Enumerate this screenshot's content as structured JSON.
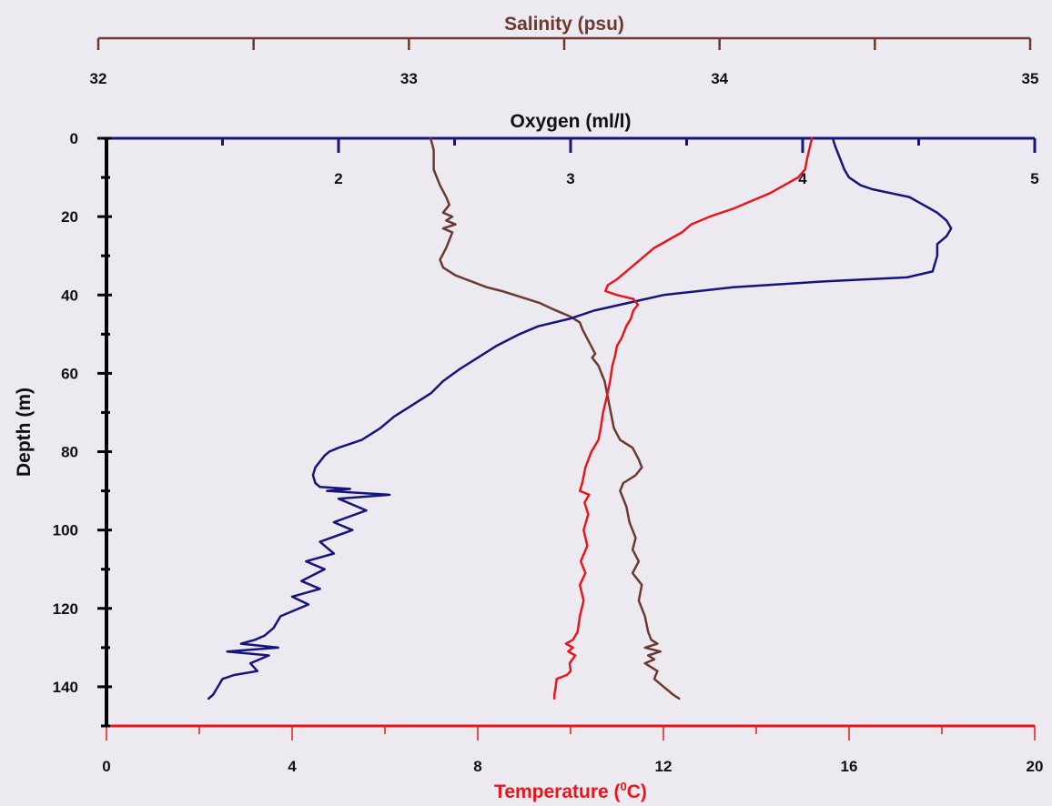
{
  "chart_data": {
    "type": "line",
    "depth_axis": {
      "label": "Depth (m)",
      "range": [
        0,
        150
      ],
      "reversed": true,
      "ticks": [
        "0",
        "20",
        "40",
        "60",
        "80",
        "100",
        "120",
        "140"
      ],
      "tick_values": [
        0,
        20,
        40,
        60,
        80,
        100,
        120,
        140
      ]
    },
    "salinity_axis": {
      "label": "Salinity (psu)",
      "range": [
        32,
        35
      ],
      "ticks": [
        "32",
        "33",
        "34",
        "35"
      ],
      "tick_values": [
        32,
        33,
        34,
        35
      ],
      "color": "#6b3a2e"
    },
    "oxygen_axis": {
      "label": "Oxygen (ml/l)",
      "range": [
        1,
        5
      ],
      "ticks": [
        "2",
        "3",
        "4",
        "5"
      ],
      "tick_values": [
        2,
        3,
        4,
        5
      ],
      "color": "#15157a"
    },
    "temperature_axis": {
      "label_prefix": "Temperature (",
      "label_sup": "0",
      "label_suffix": "C)",
      "range": [
        0,
        20
      ],
      "ticks": [
        "0",
        "4",
        "8",
        "12",
        "16",
        "20"
      ],
      "tick_values": [
        0,
        4,
        8,
        12,
        16,
        20
      ],
      "color": "#e8161b"
    },
    "series": [
      {
        "axis": "salinity",
        "color": "#6b3a2e",
        "points": [
          [
            33.07,
            0
          ],
          [
            33.08,
            3
          ],
          [
            33.08,
            8
          ],
          [
            33.1,
            12
          ],
          [
            33.12,
            15
          ],
          [
            33.13,
            17
          ],
          [
            33.11,
            19
          ],
          [
            33.14,
            20
          ],
          [
            33.12,
            21
          ],
          [
            33.15,
            22
          ],
          [
            33.11,
            23
          ],
          [
            33.14,
            24
          ],
          [
            33.13,
            26
          ],
          [
            33.12,
            28
          ],
          [
            33.1,
            31
          ],
          [
            33.11,
            33
          ],
          [
            33.15,
            35
          ],
          [
            33.2,
            36.5
          ],
          [
            33.25,
            38
          ],
          [
            33.3,
            39
          ],
          [
            33.36,
            40.5
          ],
          [
            33.42,
            42
          ],
          [
            33.46,
            43.5
          ],
          [
            33.52,
            45.5
          ],
          [
            33.55,
            47
          ],
          [
            33.56,
            49
          ],
          [
            33.58,
            52
          ],
          [
            33.6,
            55
          ],
          [
            33.59,
            56
          ],
          [
            33.61,
            58
          ],
          [
            33.63,
            62
          ],
          [
            33.64,
            66
          ],
          [
            33.65,
            70
          ],
          [
            33.66,
            74
          ],
          [
            33.68,
            77
          ],
          [
            33.72,
            79
          ],
          [
            33.74,
            82
          ],
          [
            33.75,
            84
          ],
          [
            33.73,
            86
          ],
          [
            33.69,
            88
          ],
          [
            33.68,
            90
          ],
          [
            33.7,
            94
          ],
          [
            33.71,
            98
          ],
          [
            33.73,
            102
          ],
          [
            33.72,
            105
          ],
          [
            33.74,
            108
          ],
          [
            33.72,
            111
          ],
          [
            33.75,
            114
          ],
          [
            33.74,
            118
          ],
          [
            33.76,
            122
          ],
          [
            33.77,
            126
          ],
          [
            33.78,
            128
          ],
          [
            33.8,
            129
          ],
          [
            33.76,
            130
          ],
          [
            33.81,
            131
          ],
          [
            33.77,
            132
          ],
          [
            33.79,
            133
          ],
          [
            33.76,
            134
          ],
          [
            33.8,
            136
          ],
          [
            33.79,
            138
          ],
          [
            33.82,
            140
          ],
          [
            33.85,
            142
          ],
          [
            33.87,
            143
          ]
        ]
      },
      {
        "axis": "oxygen",
        "color": "#15157a",
        "points": [
          [
            4.13,
            0
          ],
          [
            4.14,
            2
          ],
          [
            4.16,
            5
          ],
          [
            4.18,
            8
          ],
          [
            4.2,
            10
          ],
          [
            4.25,
            12
          ],
          [
            4.3,
            13
          ],
          [
            4.38,
            14
          ],
          [
            4.46,
            15
          ],
          [
            4.52,
            17
          ],
          [
            4.58,
            19
          ],
          [
            4.62,
            21
          ],
          [
            4.64,
            23
          ],
          [
            4.62,
            25
          ],
          [
            4.58,
            27
          ],
          [
            4.58,
            30
          ],
          [
            4.57,
            32
          ],
          [
            4.56,
            34
          ],
          [
            4.45,
            35.5
          ],
          [
            4.1,
            36.5
          ],
          [
            3.7,
            38
          ],
          [
            3.4,
            40
          ],
          [
            3.25,
            42
          ],
          [
            3.1,
            44
          ],
          [
            3.0,
            46
          ],
          [
            2.86,
            48
          ],
          [
            2.78,
            50
          ],
          [
            2.68,
            53
          ],
          [
            2.6,
            56
          ],
          [
            2.52,
            59
          ],
          [
            2.45,
            62
          ],
          [
            2.4,
            65
          ],
          [
            2.32,
            68
          ],
          [
            2.24,
            71
          ],
          [
            2.18,
            74
          ],
          [
            2.1,
            77
          ],
          [
            2.0,
            79
          ],
          [
            1.96,
            80
          ],
          [
            1.94,
            81
          ],
          [
            1.92,
            82.5
          ],
          [
            1.9,
            84
          ],
          [
            1.89,
            86
          ],
          [
            1.9,
            88
          ],
          [
            1.92,
            89
          ],
          [
            2.05,
            89.5
          ],
          [
            1.95,
            90
          ],
          [
            2.22,
            91
          ],
          [
            2.0,
            92
          ],
          [
            2.12,
            95
          ],
          [
            1.98,
            98
          ],
          [
            2.06,
            100
          ],
          [
            1.92,
            103
          ],
          [
            1.98,
            106
          ],
          [
            1.86,
            108
          ],
          [
            1.94,
            110
          ],
          [
            1.84,
            113
          ],
          [
            1.92,
            115
          ],
          [
            1.8,
            117
          ],
          [
            1.87,
            119
          ],
          [
            1.75,
            122
          ],
          [
            1.72,
            125
          ],
          [
            1.68,
            127
          ],
          [
            1.64,
            128
          ],
          [
            1.58,
            129
          ],
          [
            1.74,
            130
          ],
          [
            1.52,
            131
          ],
          [
            1.7,
            132
          ],
          [
            1.62,
            134
          ],
          [
            1.65,
            136
          ],
          [
            1.55,
            137
          ],
          [
            1.5,
            138
          ],
          [
            1.48,
            140
          ],
          [
            1.46,
            142
          ],
          [
            1.44,
            143
          ]
        ]
      },
      {
        "axis": "temperature",
        "color": "#e8161b",
        "points": [
          [
            15.2,
            0
          ],
          [
            15.1,
            5
          ],
          [
            15.05,
            8
          ],
          [
            14.9,
            10
          ],
          [
            14.6,
            12
          ],
          [
            14.3,
            14
          ],
          [
            13.9,
            16
          ],
          [
            13.5,
            18
          ],
          [
            13.0,
            20
          ],
          [
            12.6,
            22
          ],
          [
            12.4,
            24
          ],
          [
            12.1,
            26
          ],
          [
            11.8,
            28
          ],
          [
            11.6,
            30
          ],
          [
            11.4,
            32
          ],
          [
            11.2,
            34
          ],
          [
            11.0,
            36
          ],
          [
            10.8,
            37.5
          ],
          [
            10.75,
            39
          ],
          [
            11.0,
            40
          ],
          [
            11.35,
            41
          ],
          [
            11.45,
            42.5
          ],
          [
            11.35,
            44
          ],
          [
            11.3,
            46
          ],
          [
            11.2,
            48
          ],
          [
            11.1,
            51
          ],
          [
            11.0,
            53
          ],
          [
            10.95,
            56
          ],
          [
            10.9,
            58
          ],
          [
            10.85,
            62
          ],
          [
            10.78,
            66
          ],
          [
            10.7,
            70
          ],
          [
            10.65,
            74
          ],
          [
            10.6,
            77
          ],
          [
            10.45,
            80
          ],
          [
            10.32,
            84
          ],
          [
            10.25,
            88
          ],
          [
            10.2,
            90
          ],
          [
            10.4,
            91
          ],
          [
            10.3,
            93
          ],
          [
            10.38,
            96
          ],
          [
            10.28,
            100
          ],
          [
            10.36,
            104
          ],
          [
            10.22,
            108
          ],
          [
            10.32,
            111
          ],
          [
            10.2,
            114
          ],
          [
            10.28,
            118
          ],
          [
            10.2,
            122
          ],
          [
            10.15,
            126
          ],
          [
            10.05,
            128
          ],
          [
            9.9,
            129
          ],
          [
            10.05,
            130
          ],
          [
            9.95,
            131
          ],
          [
            10.1,
            132
          ],
          [
            9.98,
            134
          ],
          [
            10.0,
            136
          ],
          [
            9.92,
            137
          ],
          [
            9.7,
            138
          ],
          [
            9.68,
            140
          ],
          [
            9.65,
            142
          ],
          [
            9.65,
            143
          ]
        ]
      }
    ]
  }
}
